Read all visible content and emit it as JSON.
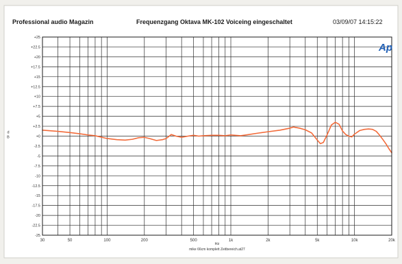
{
  "header": {
    "left": "Professional audio Magazin",
    "center": "Frequenzgang Oktava MK-102 Voiceing eingeschaltet",
    "right": "03/09/07 14:15:22",
    "logo": "Ap"
  },
  "chart_data": {
    "type": "line",
    "title": "Frequenzgang Oktava MK-102 Voiceing eingeschaltet",
    "xlabel": "Hz",
    "ylabel": "d\nB",
    "xscale": "log",
    "xlim": [
      30,
      20000
    ],
    "ylim": [
      -25,
      25
    ],
    "grid": true,
    "footnote": "mike 66cm komplett Zeitbereich.at27",
    "x_ticks": [
      {
        "value": 30,
        "label": "30"
      },
      {
        "value": 50,
        "label": "50"
      },
      {
        "value": 100,
        "label": "100"
      },
      {
        "value": 200,
        "label": "200"
      },
      {
        "value": 500,
        "label": "500"
      },
      {
        "value": 1000,
        "label": "1k"
      },
      {
        "value": 2000,
        "label": "2k"
      },
      {
        "value": 5000,
        "label": "5k"
      },
      {
        "value": 10000,
        "label": "10k"
      },
      {
        "value": 20000,
        "label": "20k"
      }
    ],
    "y_ticks": [
      {
        "value": 25,
        "label": "+25"
      },
      {
        "value": 22.5,
        "label": "+22.5"
      },
      {
        "value": 20,
        "label": "+20"
      },
      {
        "value": 17.5,
        "label": "+17.5"
      },
      {
        "value": 15,
        "label": "+15"
      },
      {
        "value": 12.5,
        "label": "+12.5"
      },
      {
        "value": 10,
        "label": "+10"
      },
      {
        "value": 7.5,
        "label": "+7.5"
      },
      {
        "value": 5,
        "label": "+5"
      },
      {
        "value": 2.5,
        "label": "+2.5"
      },
      {
        "value": 0,
        "label": "+0"
      },
      {
        "value": -2.5,
        "label": "-2.5"
      },
      {
        "value": -5,
        "label": "-5"
      },
      {
        "value": -7.5,
        "label": "-7.5"
      },
      {
        "value": -10,
        "label": "-10"
      },
      {
        "value": -12.5,
        "label": "-12.5"
      },
      {
        "value": -15,
        "label": "-15"
      },
      {
        "value": -17.5,
        "label": "-17.5"
      },
      {
        "value": -20,
        "label": "-20"
      },
      {
        "value": -22.5,
        "label": "-22.5"
      },
      {
        "value": -25,
        "label": "-25"
      }
    ],
    "series": [
      {
        "color": "#f26b3a",
        "points": [
          [
            30,
            1.5
          ],
          [
            40,
            1.2
          ],
          [
            50,
            0.9
          ],
          [
            60,
            0.6
          ],
          [
            70,
            0.3
          ],
          [
            80,
            0.1
          ],
          [
            100,
            -0.6
          ],
          [
            120,
            -0.9
          ],
          [
            140,
            -1.0
          ],
          [
            160,
            -0.8
          ],
          [
            180,
            -0.4
          ],
          [
            200,
            -0.3
          ],
          [
            220,
            -0.6
          ],
          [
            250,
            -1.1
          ],
          [
            280,
            -0.9
          ],
          [
            300,
            -0.6
          ],
          [
            330,
            0.4
          ],
          [
            360,
            0.0
          ],
          [
            400,
            -0.3
          ],
          [
            450,
            0.0
          ],
          [
            500,
            0.2
          ],
          [
            550,
            0.0
          ],
          [
            600,
            0.1
          ],
          [
            700,
            0.2
          ],
          [
            800,
            0.2
          ],
          [
            900,
            0.1
          ],
          [
            1000,
            0.3
          ],
          [
            1200,
            0.1
          ],
          [
            1400,
            0.4
          ],
          [
            1700,
            0.8
          ],
          [
            2000,
            1.1
          ],
          [
            2500,
            1.5
          ],
          [
            3000,
            2.0
          ],
          [
            3200,
            2.3
          ],
          [
            3600,
            2.0
          ],
          [
            4000,
            1.6
          ],
          [
            4500,
            0.8
          ],
          [
            5000,
            -1.0
          ],
          [
            5300,
            -1.9
          ],
          [
            5600,
            -1.6
          ],
          [
            6000,
            0.3
          ],
          [
            6500,
            2.8
          ],
          [
            7000,
            3.5
          ],
          [
            7500,
            3.0
          ],
          [
            8000,
            1.3
          ],
          [
            8500,
            0.4
          ],
          [
            9000,
            0.0
          ],
          [
            9500,
            -0.2
          ],
          [
            10000,
            0.5
          ],
          [
            11000,
            1.4
          ],
          [
            12000,
            1.7
          ],
          [
            13000,
            1.8
          ],
          [
            14000,
            1.7
          ],
          [
            15000,
            1.2
          ],
          [
            16000,
            0.2
          ],
          [
            17000,
            -0.9
          ],
          [
            18000,
            -2.0
          ],
          [
            19000,
            -3.2
          ],
          [
            20000,
            -4.2
          ]
        ]
      }
    ]
  }
}
